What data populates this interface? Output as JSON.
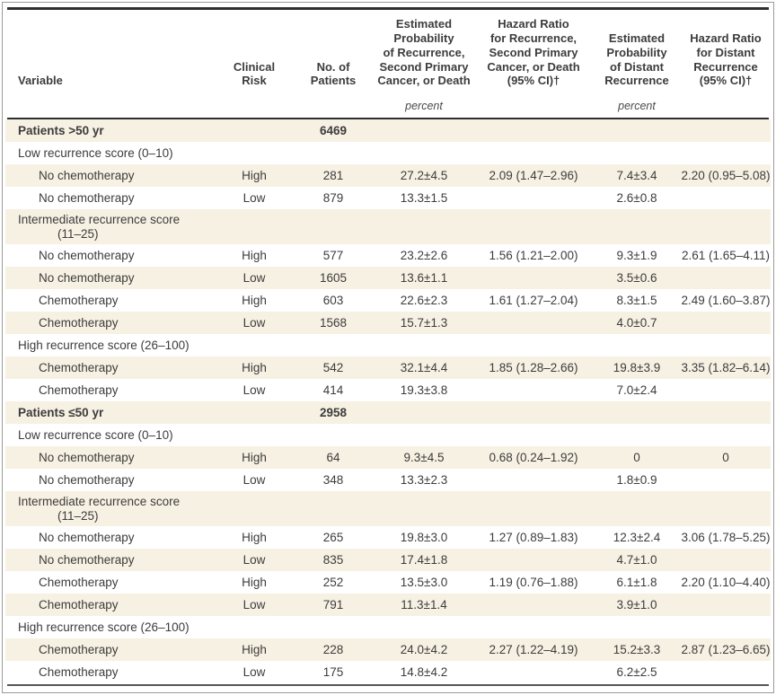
{
  "colors": {
    "stripe": "#f7f1e3",
    "rule_dark": "#2f2f2f",
    "rule_bottom": "#555555",
    "frame_border": "#9a9a9a",
    "text": "#3c3c3c"
  },
  "table": {
    "percent_label": "percent",
    "columns": [
      {
        "id": "variable",
        "lines": [
          "Variable"
        ]
      },
      {
        "id": "clinical-risk",
        "lines": [
          "Clinical",
          "Risk"
        ]
      },
      {
        "id": "no-of-patients",
        "lines": [
          "No. of",
          "Patients"
        ]
      },
      {
        "id": "est-prob-recurrence",
        "lines": [
          "Estimated",
          "Probability",
          "of Recurrence,",
          "Second Primary",
          "Cancer, or Death"
        ]
      },
      {
        "id": "hazard-ratio-recurrence",
        "lines": [
          "Hazard Ratio",
          "for Recurrence,",
          "Second Primary",
          "Cancer, or Death",
          "(95% CI)†"
        ]
      },
      {
        "id": "est-prob-distant",
        "lines": [
          "Estimated",
          "Probability",
          "of Distant",
          "Recurrence"
        ]
      },
      {
        "id": "hazard-ratio-distant",
        "lines": [
          "Hazard Ratio",
          "for Distant",
          "Recurrence",
          "(95% CI)†"
        ]
      }
    ],
    "rows": [
      {
        "label": "Patients >50 yr",
        "bold": true,
        "indent": 0,
        "risk": "",
        "n": "6469",
        "prob": "",
        "hr": "",
        "dprob": "",
        "dhr": ""
      },
      {
        "label": "Low recurrence score (0–10)",
        "indent": 0,
        "risk": "",
        "n": "",
        "prob": "",
        "hr": "",
        "dprob": "",
        "dhr": ""
      },
      {
        "label": "No chemotherapy",
        "indent": 1,
        "risk": "High",
        "n": "281",
        "prob": "27.2±4.5",
        "hr": "2.09 (1.47–2.96)",
        "dprob": "7.4±3.4",
        "dhr": "2.20 (0.95–5.08)"
      },
      {
        "label": "No chemotherapy",
        "indent": 1,
        "risk": "Low",
        "n": "879",
        "prob": "13.3±1.5",
        "hr": "",
        "dprob": "2.6±0.8",
        "dhr": ""
      },
      {
        "label": "Intermediate recurrence score",
        "label2": "(11–25)",
        "indent": 0,
        "risk": "",
        "n": "",
        "prob": "",
        "hr": "",
        "dprob": "",
        "dhr": ""
      },
      {
        "label": "No chemotherapy",
        "indent": 1,
        "risk": "High",
        "n": "577",
        "prob": "23.2±2.6",
        "hr": "1.56 (1.21–2.00)",
        "dprob": "9.3±1.9",
        "dhr": "2.61 (1.65–4.11)"
      },
      {
        "label": "No chemotherapy",
        "indent": 1,
        "risk": "Low",
        "n": "1605",
        "prob": "13.6±1.1",
        "hr": "",
        "dprob": "3.5±0.6",
        "dhr": ""
      },
      {
        "label": "Chemotherapy",
        "indent": 1,
        "risk": "High",
        "n": "603",
        "prob": "22.6±2.3",
        "hr": "1.61 (1.27–2.04)",
        "dprob": "8.3±1.5",
        "dhr": "2.49 (1.60–3.87)"
      },
      {
        "label": "Chemotherapy",
        "indent": 1,
        "risk": "Low",
        "n": "1568",
        "prob": "15.7±1.3",
        "hr": "",
        "dprob": "4.0±0.7",
        "dhr": ""
      },
      {
        "label": "High recurrence score (26–100)",
        "indent": 0,
        "risk": "",
        "n": "",
        "prob": "",
        "hr": "",
        "dprob": "",
        "dhr": ""
      },
      {
        "label": "Chemotherapy",
        "indent": 1,
        "risk": "High",
        "n": "542",
        "prob": "32.1±4.4",
        "hr": "1.85 (1.28–2.66)",
        "dprob": "19.8±3.9",
        "dhr": "3.35 (1.82–6.14)"
      },
      {
        "label": "Chemotherapy",
        "indent": 1,
        "risk": "Low",
        "n": "414",
        "prob": "19.3±3.8",
        "hr": "",
        "dprob": "7.0±2.4",
        "dhr": ""
      },
      {
        "label": "Patients ≤50 yr",
        "bold": true,
        "indent": 0,
        "risk": "",
        "n": "2958",
        "prob": "",
        "hr": "",
        "dprob": "",
        "dhr": ""
      },
      {
        "label": "Low recurrence score (0–10)",
        "indent": 0,
        "risk": "",
        "n": "",
        "prob": "",
        "hr": "",
        "dprob": "",
        "dhr": ""
      },
      {
        "label": "No chemotherapy",
        "indent": 1,
        "risk": "High",
        "n": "64",
        "prob": "9.3±4.5",
        "hr": "0.68 (0.24–1.92)",
        "dprob": "0",
        "dhr": "0"
      },
      {
        "label": "No chemotherapy",
        "indent": 1,
        "risk": "Low",
        "n": "348",
        "prob": "13.3±2.3",
        "hr": "",
        "dprob": "1.8±0.9",
        "dhr": ""
      },
      {
        "label": "Intermediate recurrence score",
        "label2": "(11–25)",
        "indent": 0,
        "risk": "",
        "n": "",
        "prob": "",
        "hr": "",
        "dprob": "",
        "dhr": ""
      },
      {
        "label": "No chemotherapy",
        "indent": 1,
        "risk": "High",
        "n": "265",
        "prob": "19.8±3.0",
        "hr": "1.27 (0.89–1.83)",
        "dprob": "12.3±2.4",
        "dhr": "3.06 (1.78–5.25)"
      },
      {
        "label": "No chemotherapy",
        "indent": 1,
        "risk": "Low",
        "n": "835",
        "prob": "17.4±1.8",
        "hr": "",
        "dprob": "4.7±1.0",
        "dhr": ""
      },
      {
        "label": "Chemotherapy",
        "indent": 1,
        "risk": "High",
        "n": "252",
        "prob": "13.5±3.0",
        "hr": "1.19 (0.76–1.88)",
        "dprob": "6.1±1.8",
        "dhr": "2.20 (1.10–4.40)"
      },
      {
        "label": "Chemotherapy",
        "indent": 1,
        "risk": "Low",
        "n": "791",
        "prob": "11.3±1.4",
        "hr": "",
        "dprob": "3.9±1.0",
        "dhr": ""
      },
      {
        "label": "High recurrence score (26–100)",
        "indent": 0,
        "risk": "",
        "n": "",
        "prob": "",
        "hr": "",
        "dprob": "",
        "dhr": ""
      },
      {
        "label": "Chemotherapy",
        "indent": 1,
        "risk": "High",
        "n": "228",
        "prob": "24.0±4.2",
        "hr": "2.27 (1.22–4.19)",
        "dprob": "15.2±3.3",
        "dhr": "2.87 (1.23–6.65)"
      },
      {
        "label": "Chemotherapy",
        "indent": 1,
        "risk": "Low",
        "n": "175",
        "prob": "14.8±4.2",
        "hr": "",
        "dprob": "6.2±2.5",
        "dhr": ""
      }
    ]
  }
}
